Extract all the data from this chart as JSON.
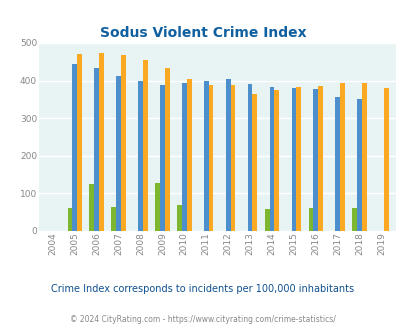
{
  "title": "Sodus Violent Crime Index",
  "years": [
    2004,
    2005,
    2006,
    2007,
    2008,
    2009,
    2010,
    2011,
    2012,
    2013,
    2014,
    2015,
    2016,
    2017,
    2018,
    2019
  ],
  "sodus_village": [
    0,
    62,
    125,
    65,
    0,
    128,
    68,
    0,
    0,
    0,
    58,
    0,
    62,
    0,
    62,
    0
  ],
  "new_york": [
    0,
    445,
    433,
    413,
    399,
    387,
    393,
    399,
    405,
    391,
    383,
    380,
    377,
    356,
    350,
    0
  ],
  "national": [
    0,
    470,
    474,
    467,
    455,
    432,
    405,
    387,
    387,
    365,
    376,
    383,
    386,
    394,
    394,
    380
  ],
  "sodus_color": "#7db72f",
  "ny_color": "#4d8fcc",
  "national_color": "#fba822",
  "bg_color": "#e8f4f4",
  "title_color": "#1060a0",
  "ylim": [
    0,
    500
  ],
  "yticks": [
    0,
    100,
    200,
    300,
    400,
    500
  ],
  "subtitle": "Crime Index corresponds to incidents per 100,000 inhabitants",
  "footer": "© 2024 CityRating.com - https://www.cityrating.com/crime-statistics/",
  "subtitle_color": "#105090",
  "footer_color": "#888888",
  "legend_label_color": "#333333"
}
